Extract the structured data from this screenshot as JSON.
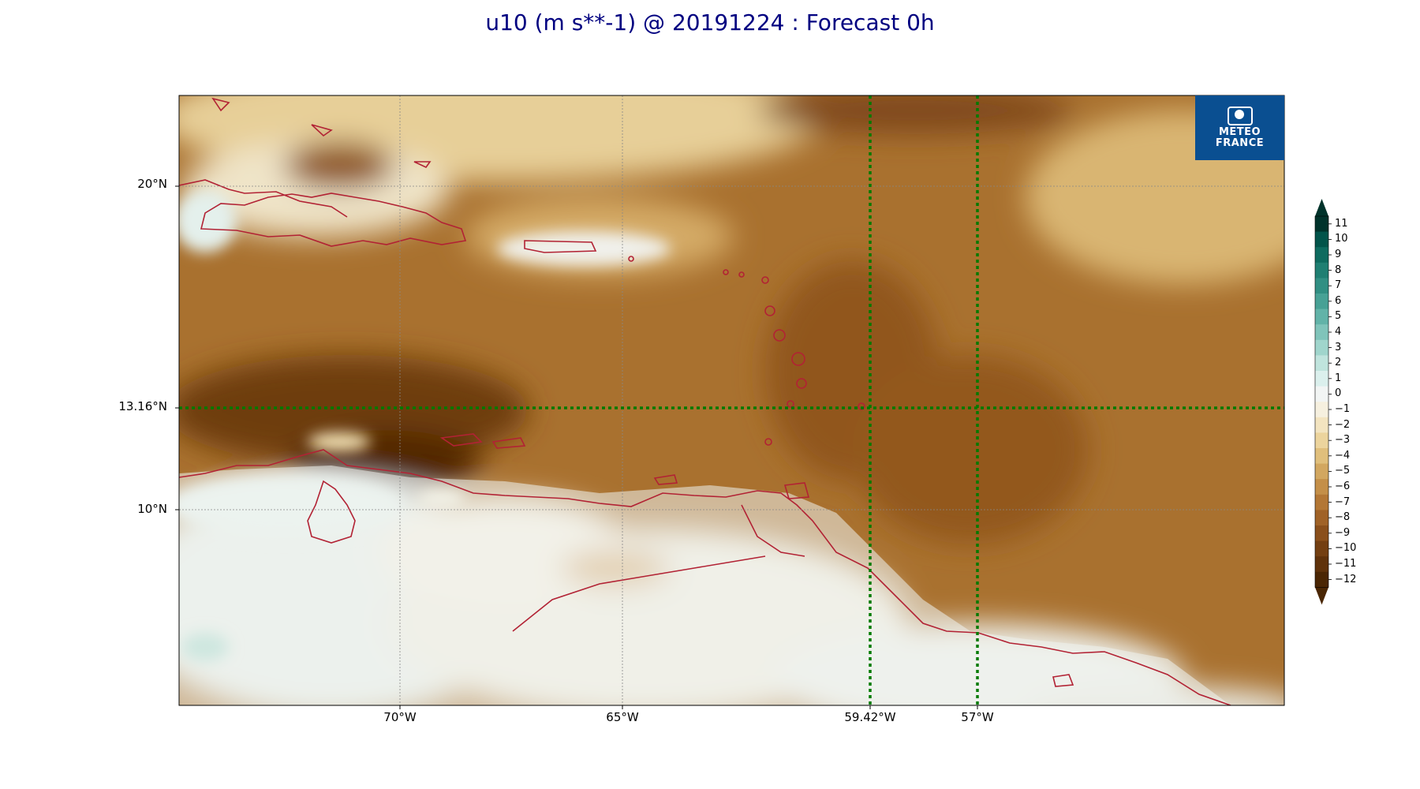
{
  "title": "u10 (m s**-1) @ 20191224 : Forecast 0h",
  "logo": {
    "line1": "METEO",
    "line2": "FRANCE",
    "icon": "meteo-france-logo-icon"
  },
  "map": {
    "region": "Caribbean Sea / Lesser Antilles / northern South America",
    "lon_range": [
      -75,
      -50
    ],
    "lat_range": [
      4,
      23
    ],
    "lat_labels": [
      "20°N",
      "13.16°N",
      "10°N"
    ],
    "lon_labels": [
      "70°W",
      "65°W",
      "59.42°W",
      "57°W"
    ],
    "highlight_lines": {
      "lat": "13.16°N",
      "lons": [
        "59.42°W",
        "57°W"
      ],
      "color": "#007a00"
    },
    "coastline_color": "#b22234"
  },
  "colorbar": {
    "ticks": [
      "11",
      "10",
      "9",
      "8",
      "7",
      "6",
      "5",
      "4",
      "3",
      "2",
      "1",
      "0",
      "−1",
      "−2",
      "−3",
      "−4",
      "−5",
      "−6",
      "−7",
      "−8",
      "−9",
      "−10",
      "−11",
      "−12"
    ],
    "colors_top_to_bottom": [
      "#00332b",
      "#02544a",
      "#0e6b5f",
      "#1f7f72",
      "#318f83",
      "#48a195",
      "#62b3a8",
      "#80c4ba",
      "#a0d5cc",
      "#c0e4dd",
      "#dbf0ed",
      "#f2f5f4",
      "#f6f0df",
      "#f3e4c0",
      "#ecd49d",
      "#e0bf7c",
      "#d2a760",
      "#c48f48",
      "#b37735",
      "#a06227",
      "#8a4f1b",
      "#733f12",
      "#5f320b",
      "#4a2604"
    ]
  }
}
